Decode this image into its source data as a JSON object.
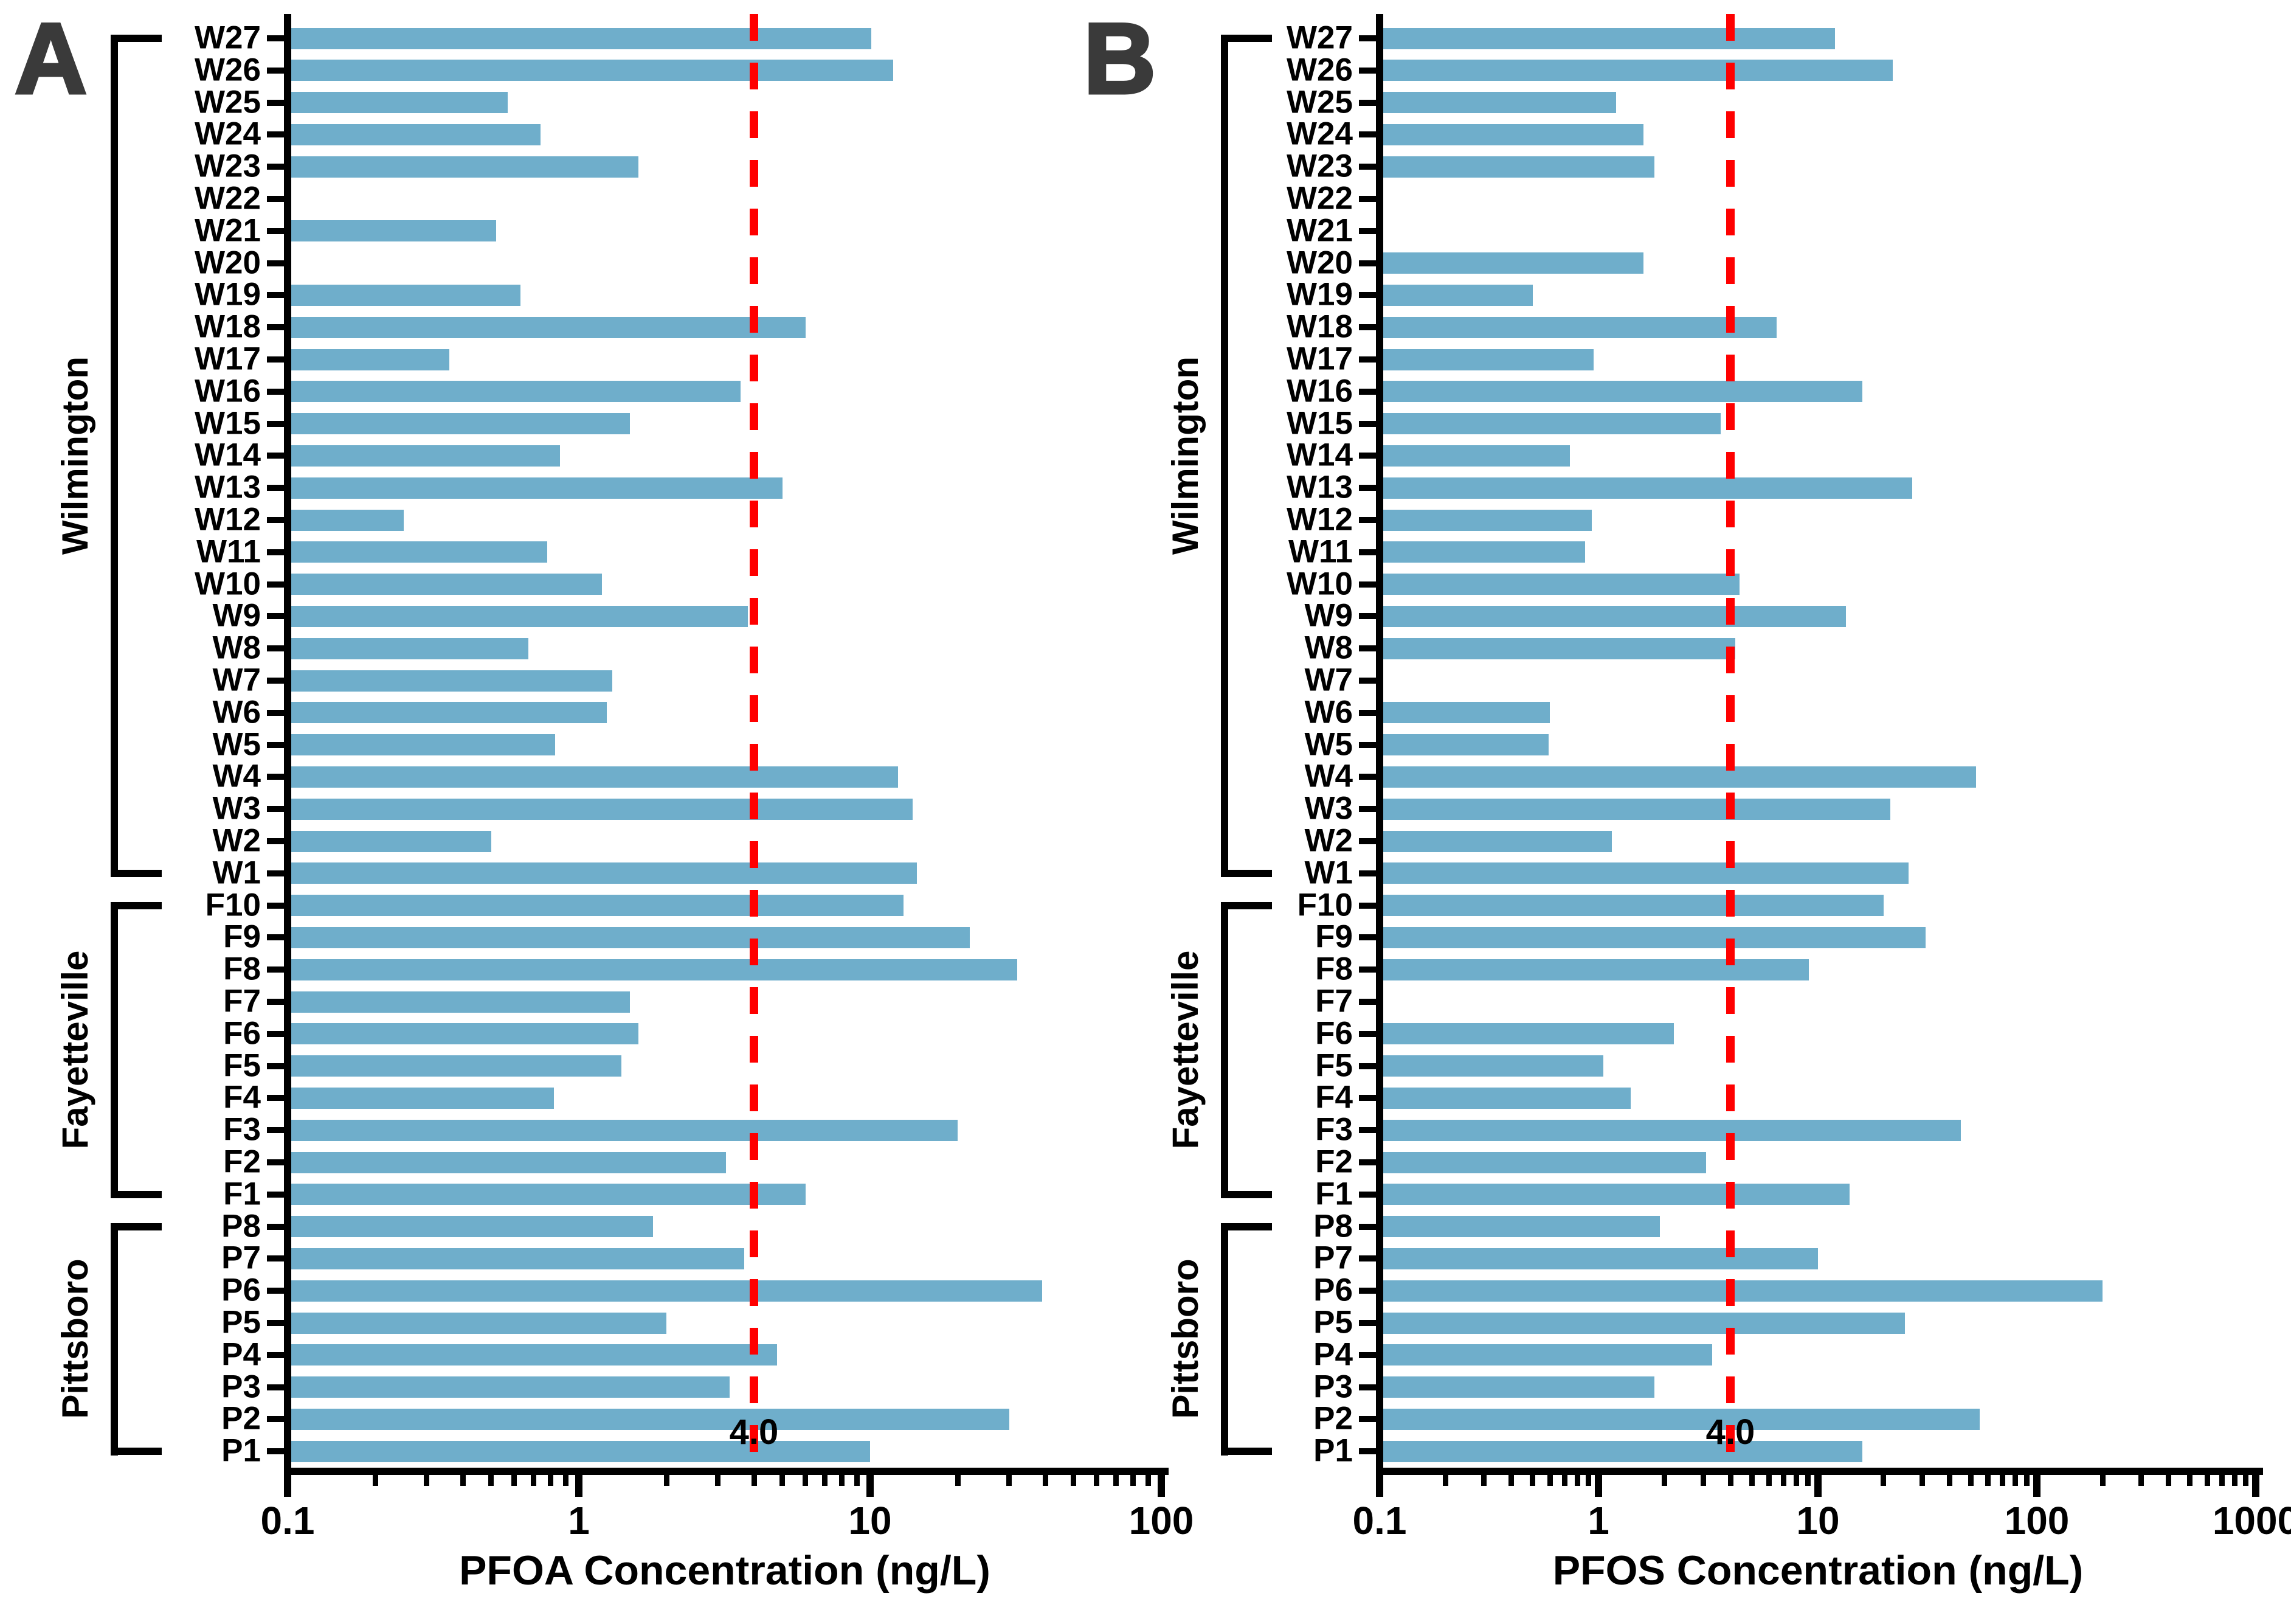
{
  "figure": {
    "panels": [
      {
        "letter": "A"
      },
      {
        "letter": "B"
      }
    ],
    "colors": {
      "bar": "#6FAECB",
      "threshold": "#FF0000",
      "axis": "#000000",
      "panel_letter": "#3A3A3A"
    }
  },
  "chart_data": [
    {
      "type": "bar",
      "panel": "A",
      "orientation": "horizontal",
      "title": "",
      "xlabel": "PFOA Concentration (ng/L)",
      "ylabel": "",
      "x_scale": "log",
      "xlim": [
        0.1,
        100
      ],
      "x_tick_labels": [
        "0.1",
        "1",
        "10",
        "100"
      ],
      "grid": false,
      "legend": "none",
      "bar_color": "#6FAECB",
      "threshold": {
        "value": 4.0,
        "label": "4.0",
        "color": "#FF0000",
        "style": "dashed"
      },
      "null_means": "not detected (no bar drawn)",
      "categories": [
        "W27",
        "W26",
        "W25",
        "W24",
        "W23",
        "W22",
        "W21",
        "W20",
        "W19",
        "W18",
        "W17",
        "W16",
        "W15",
        "W14",
        "W13",
        "W12",
        "W11",
        "W10",
        "W9",
        "W8",
        "W7",
        "W6",
        "W5",
        "W4",
        "W3",
        "W2",
        "W1",
        "F10",
        "F9",
        "F8",
        "F7",
        "F6",
        "F5",
        "F4",
        "F3",
        "F2",
        "F1",
        "P8",
        "P7",
        "P6",
        "P5",
        "P4",
        "P3",
        "P2",
        "P1"
      ],
      "values": [
        10.1,
        12,
        0.57,
        0.74,
        1.6,
        null,
        0.52,
        null,
        0.63,
        6.0,
        0.36,
        3.6,
        1.5,
        0.86,
        5.0,
        0.25,
        0.78,
        1.2,
        3.8,
        0.67,
        1.3,
        1.25,
        0.83,
        12.5,
        14,
        0.5,
        14.5,
        13,
        22,
        32,
        1.5,
        1.6,
        1.4,
        0.82,
        20,
        3.2,
        6.0,
        1.8,
        3.7,
        39,
        2.0,
        4.8,
        3.3,
        30,
        10
      ],
      "groups": [
        {
          "label": "Wilmington",
          "first": "W27",
          "last": "W1"
        },
        {
          "label": "Fayetteville",
          "first": "F10",
          "last": "F1"
        },
        {
          "label": "Pittsboro",
          "first": "P8",
          "last": "P1"
        }
      ]
    },
    {
      "type": "bar",
      "panel": "B",
      "orientation": "horizontal",
      "title": "",
      "xlabel": "PFOS Concentration (ng/L)",
      "ylabel": "",
      "x_scale": "log",
      "xlim": [
        0.1,
        1000
      ],
      "x_tick_labels": [
        "0.1",
        "1",
        "10",
        "100",
        "1000"
      ],
      "grid": false,
      "legend": "none",
      "bar_color": "#6FAECB",
      "threshold": {
        "value": 4.0,
        "label": "4.0",
        "color": "#FF0000",
        "style": "dashed"
      },
      "null_means": "not detected (no bar drawn)",
      "categories": [
        "W27",
        "W26",
        "W25",
        "W24",
        "W23",
        "W22",
        "W21",
        "W20",
        "W19",
        "W18",
        "W17",
        "W16",
        "W15",
        "W14",
        "W13",
        "W12",
        "W11",
        "W10",
        "W9",
        "W8",
        "W7",
        "W6",
        "W5",
        "W4",
        "W3",
        "W2",
        "W1",
        "F10",
        "F9",
        "F8",
        "F7",
        "F6",
        "F5",
        "F4",
        "F3",
        "F2",
        "F1",
        "P8",
        "P7",
        "P6",
        "P5",
        "P4",
        "P3",
        "P2",
        "P1"
      ],
      "values": [
        12,
        22,
        1.2,
        1.6,
        1.8,
        null,
        null,
        1.6,
        0.5,
        6.5,
        0.95,
        16,
        3.6,
        0.74,
        27,
        0.93,
        0.87,
        4.4,
        13.5,
        4.2,
        null,
        0.6,
        0.59,
        53,
        21.5,
        1.15,
        26,
        20,
        31,
        9.1,
        null,
        2.2,
        1.05,
        1.4,
        45,
        3.1,
        14,
        1.9,
        10,
        200,
        25,
        3.3,
        1.8,
        55,
        16
      ],
      "groups": [
        {
          "label": "Wilmington",
          "first": "W27",
          "last": "W1"
        },
        {
          "label": "Fayetteville",
          "first": "F10",
          "last": "F1"
        },
        {
          "label": "Pittsboro",
          "first": "P8",
          "last": "P1"
        }
      ]
    }
  ]
}
